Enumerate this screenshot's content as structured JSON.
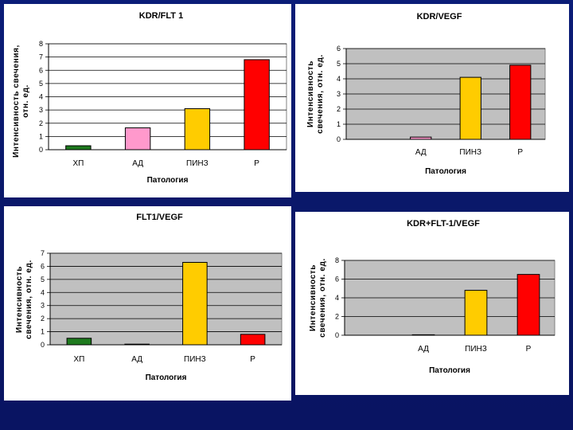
{
  "chart_data": [
    {
      "type": "bar",
      "title": "KDR/FLT 1",
      "xlabel": "Патология",
      "ylabel": [
        "Интенсивность свечения,",
        "отн. ед."
      ],
      "categories": [
        "ХП",
        "АД",
        "ПИНЗ",
        "Р"
      ],
      "values": [
        0.3,
        1.65,
        3.1,
        6.8
      ],
      "colors": [
        "#1e7a1e",
        "#ff99cc",
        "#ffcc00",
        "#ff0000"
      ],
      "ylim": [
        0,
        8
      ],
      "yticks": [
        "0",
        "1",
        "2",
        "3",
        "4",
        "5",
        "6",
        "7",
        "8"
      ],
      "grid": true,
      "plot_background": "#ffffff",
      "legend": "none"
    },
    {
      "type": "bar",
      "title": "KDR/VEGF",
      "xlabel": "Патология",
      "ylabel": [
        "Интенсивность",
        "свечения, отн. ед."
      ],
      "categories": [
        "",
        "АД",
        "ПИНЗ",
        "Р"
      ],
      "values": [
        0,
        0.15,
        4.1,
        4.9
      ],
      "colors": [
        "#1e7a1e",
        "#ff99cc",
        "#ffcc00",
        "#ff0000"
      ],
      "ylim": [
        0,
        6
      ],
      "yticks": [
        "0",
        "1",
        "2",
        "3",
        "4",
        "5",
        "6"
      ],
      "grid": true,
      "plot_background": "#c0c0c0",
      "legend": "none"
    },
    {
      "type": "bar",
      "title": "FLT1/VEGF",
      "xlabel": "Патология",
      "ylabel": [
        "Интенсивность",
        "свечения, отн. ед."
      ],
      "categories": [
        "ХП",
        "АД",
        "ПИНЗ",
        "Р"
      ],
      "values": [
        0.5,
        0.05,
        6.3,
        0.8
      ],
      "colors": [
        "#1e7a1e",
        "#ff99cc",
        "#ffcc00",
        "#ff0000"
      ],
      "ylim": [
        0,
        7
      ],
      "yticks": [
        "0",
        "1",
        "2",
        "3",
        "4",
        "5",
        "6",
        "7"
      ],
      "grid": true,
      "plot_background": "#c0c0c0",
      "legend": "none"
    },
    {
      "type": "bar",
      "title": "KDR+FLT-1/VEGF",
      "xlabel": "Патология",
      "ylabel": [
        "Интенсивность",
        "свечения, отн. ед."
      ],
      "categories": [
        "",
        "АД",
        "ПИНЗ",
        "Р"
      ],
      "values": [
        0,
        0.05,
        4.8,
        6.5
      ],
      "colors": [
        "#1e7a1e",
        "#ff99cc",
        "#ffcc00",
        "#ff0000"
      ],
      "ylim": [
        0,
        8
      ],
      "yticks": [
        "0",
        "2",
        "4",
        "6",
        "8"
      ],
      "grid": true,
      "plot_background": "#c0c0c0",
      "legend": "none"
    }
  ]
}
